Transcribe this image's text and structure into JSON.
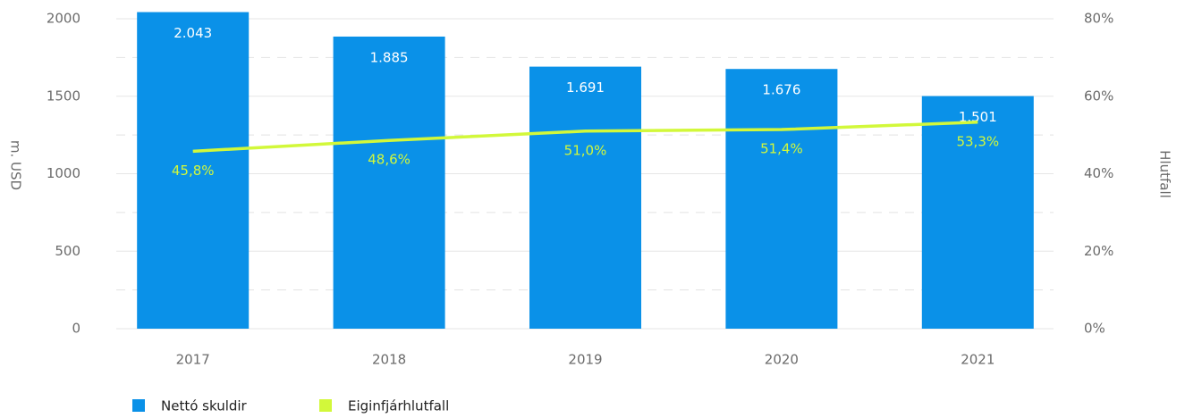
{
  "chart_data": {
    "type": "bar+line",
    "categories": [
      "2017",
      "2018",
      "2019",
      "2020",
      "2021"
    ],
    "ylabel": "m. USD",
    "y2label": "Hlutfall",
    "ylim": [
      0,
      2000
    ],
    "yticks": [
      0,
      500,
      1000,
      1500,
      2000
    ],
    "minor_yticks": [
      250,
      750,
      1250,
      1750
    ],
    "y2lim": [
      0,
      80
    ],
    "y2ticks": [
      {
        "value": 0,
        "label": "0%"
      },
      {
        "value": 20,
        "label": "20%"
      },
      {
        "value": 40,
        "label": "40%"
      },
      {
        "value": 60,
        "label": "60%"
      },
      {
        "value": 80,
        "label": "80%"
      }
    ],
    "grid": true,
    "legend": "bottom-left",
    "series": [
      {
        "name": "Nettó skuldir",
        "type": "bar",
        "color": "#0a91e8",
        "values": [
          2043,
          1885,
          1691,
          1676,
          1501
        ],
        "value_labels": [
          "2.043",
          "1.885",
          "1.691",
          "1.676",
          "1.501"
        ]
      },
      {
        "name": "Eiginfjárhlutfall",
        "type": "line",
        "axis": "y2",
        "color": "#d2f83a",
        "values": [
          45.8,
          48.6,
          51.0,
          51.4,
          53.3
        ],
        "value_labels": [
          "45,8%",
          "48,6%",
          "51,0%",
          "51,4%",
          "53,3%"
        ]
      }
    ]
  }
}
